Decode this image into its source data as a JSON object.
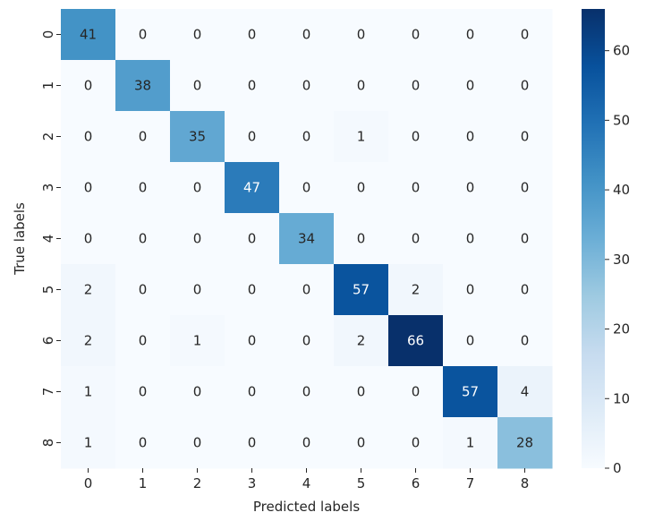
{
  "chart_data": {
    "type": "heatmap",
    "title": "",
    "xlabel": "Predicted labels",
    "ylabel": "True labels",
    "x_categories": [
      "0",
      "1",
      "2",
      "3",
      "4",
      "5",
      "6",
      "7",
      "8"
    ],
    "y_categories": [
      "0",
      "1",
      "2",
      "3",
      "4",
      "5",
      "6",
      "7",
      "8"
    ],
    "values": [
      [
        41,
        0,
        0,
        0,
        0,
        0,
        0,
        0,
        0
      ],
      [
        0,
        38,
        0,
        0,
        0,
        0,
        0,
        0,
        0
      ],
      [
        0,
        0,
        35,
        0,
        0,
        1,
        0,
        0,
        0
      ],
      [
        0,
        0,
        0,
        47,
        0,
        0,
        0,
        0,
        0
      ],
      [
        0,
        0,
        0,
        0,
        34,
        0,
        0,
        0,
        0
      ],
      [
        2,
        0,
        0,
        0,
        0,
        57,
        2,
        0,
        0
      ],
      [
        2,
        0,
        1,
        0,
        0,
        2,
        66,
        0,
        0
      ],
      [
        1,
        0,
        0,
        0,
        0,
        0,
        0,
        57,
        4
      ],
      [
        1,
        0,
        0,
        0,
        0,
        0,
        0,
        1,
        28
      ]
    ],
    "colorscale": "Blues",
    "color_range": [
      0,
      66
    ],
    "colorbar_ticks": [
      "0",
      "10",
      "20",
      "30",
      "40",
      "50",
      "60"
    ],
    "colors": {
      "low": "#f7fbff",
      "high": "#08306b",
      "text_dark": "#262626",
      "text_light": "#ffffff"
    }
  }
}
